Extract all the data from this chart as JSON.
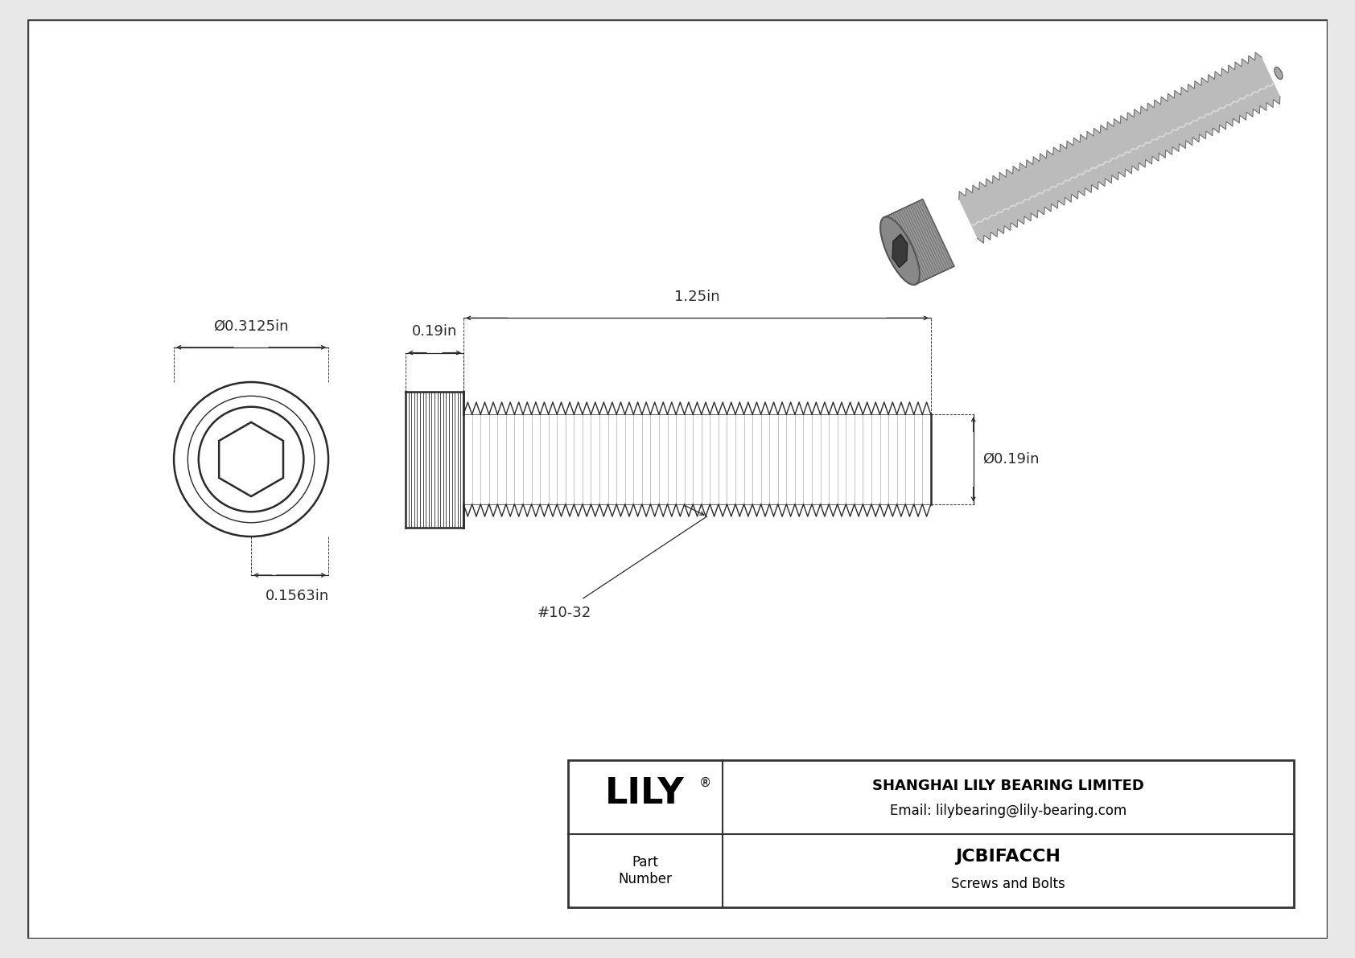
{
  "bg_color": "#e8e8e8",
  "inner_bg_color": "#ffffff",
  "border_color": "#444444",
  "line_color": "#2a2a2a",
  "text_color": "#2a2a2a",
  "title": "JCBIFACCH",
  "subtitle": "Screws and Bolts",
  "company_name": "SHANGHAI LILY BEARING LIMITED",
  "company_email": "Email: lilybearing@lily-bearing.com",
  "logo_text": "LILY",
  "part_label": "Part\nNumber",
  "dim_diameter_head": "Ø0.3125in",
  "dim_head_height": "0.1563in",
  "dim_thread_length": "1.25in",
  "dim_head_width": "0.19in",
  "dim_shaft_diameter": "Ø0.19in",
  "thread_label": "#10-32"
}
